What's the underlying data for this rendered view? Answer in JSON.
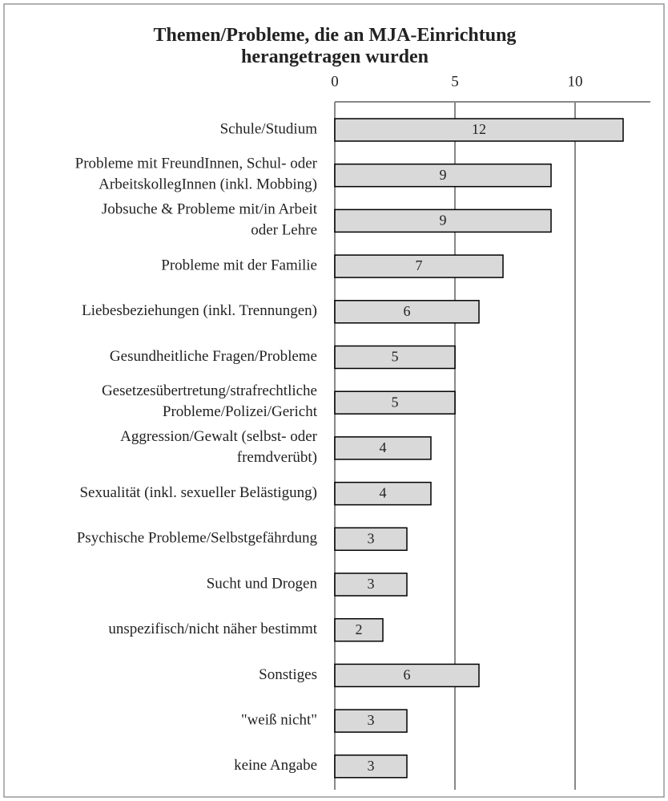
{
  "chart_data": {
    "type": "bar",
    "orientation": "horizontal",
    "title": "Themen/Probleme, die an MJA-Einrichtung\nherangetragen wurden",
    "categories": [
      "Schule/Studium",
      "Probleme mit FreundInnen, Schul- oder\nArbeitskollegInnen (inkl. Mobbing)",
      "Jobsuche & Probleme mit/in Arbeit\noder Lehre",
      "Probleme mit der Familie",
      "Liebesbeziehungen (inkl. Trennungen)",
      "Gesundheitliche Fragen/Probleme",
      "Gesetzesübertretung/strafrechtliche\nProbleme/Polizei/Gericht",
      "Aggression/Gewalt (selbst- oder\nfremdverübt)",
      "Sexualität (inkl. sexueller Belästigung)",
      "Psychische Probleme/Selbstgefährdung",
      "Sucht und Drogen",
      "unspezifisch/nicht näher bestimmt",
      "Sonstiges",
      "\"weiß nicht\"",
      "keine Angabe"
    ],
    "values": [
      12,
      9,
      9,
      7,
      6,
      5,
      5,
      4,
      4,
      3,
      3,
      2,
      6,
      3,
      3
    ],
    "color": "#d9d9d9",
    "xlim": [
      0,
      13
    ],
    "xticks": [
      0,
      5,
      10
    ],
    "grid": true
  }
}
